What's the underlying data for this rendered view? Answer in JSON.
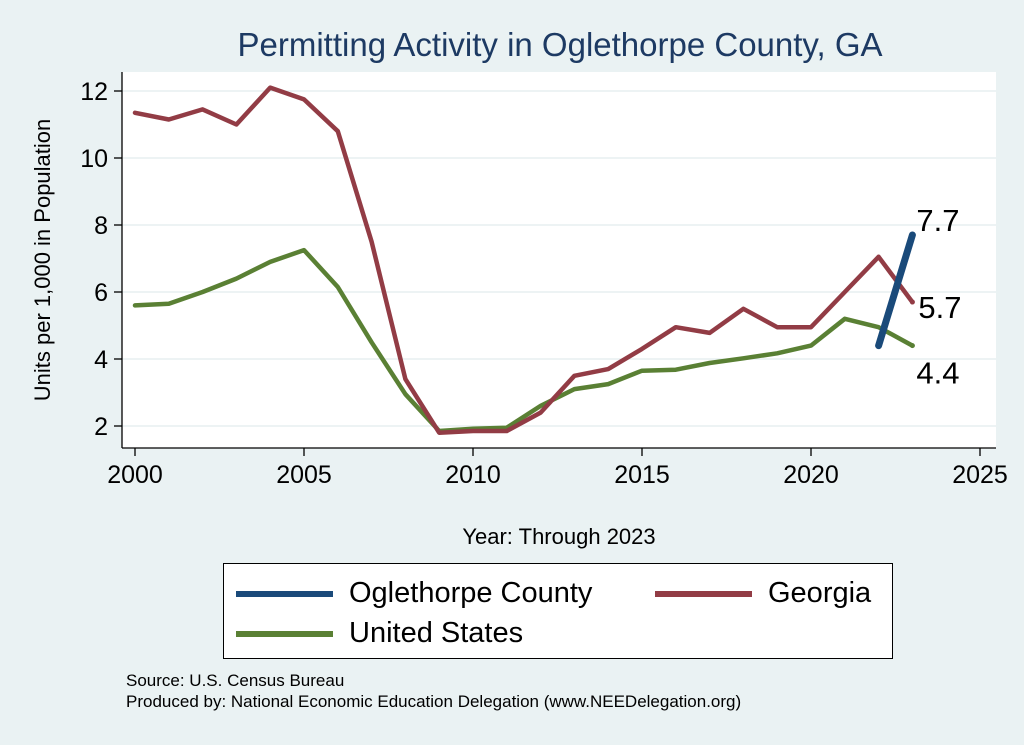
{
  "chart_data": {
    "type": "line",
    "title": "Permitting Activity in Oglethorpe County, GA",
    "xlabel": "Year: Through 2023",
    "ylabel": "Units per 1,000 in Population",
    "xlim": [
      2000,
      2025
    ],
    "ylim": [
      1.5,
      12.6
    ],
    "xticks": [
      2000,
      2005,
      2010,
      2015,
      2020,
      2025
    ],
    "yticks": [
      2,
      4,
      6,
      8,
      10,
      12
    ],
    "grid": true,
    "series": [
      {
        "name": "Oglethorpe County",
        "color": "#1a4a7a",
        "x": [
          2022,
          2023
        ],
        "values": [
          4.4,
          7.7
        ],
        "end_label": "7.7"
      },
      {
        "name": "Georgia",
        "color": "#923c45",
        "x": [
          2000,
          2001,
          2002,
          2003,
          2004,
          2005,
          2006,
          2007,
          2008,
          2009,
          2010,
          2011,
          2012,
          2013,
          2014,
          2015,
          2016,
          2017,
          2018,
          2019,
          2020,
          2021,
          2022,
          2023
        ],
        "values": [
          11.35,
          11.15,
          11.45,
          11.0,
          12.1,
          11.75,
          10.8,
          7.5,
          3.4,
          1.8,
          1.85,
          1.85,
          2.4,
          3.5,
          3.7,
          4.3,
          4.95,
          4.78,
          5.5,
          4.95,
          4.95,
          6.0,
          7.05,
          5.7
        ],
        "end_label": "5.7"
      },
      {
        "name": "United States",
        "color": "#5a8034",
        "x": [
          2000,
          2001,
          2002,
          2003,
          2004,
          2005,
          2006,
          2007,
          2008,
          2009,
          2010,
          2011,
          2012,
          2013,
          2014,
          2015,
          2016,
          2017,
          2018,
          2019,
          2020,
          2021,
          2022,
          2023
        ],
        "values": [
          5.6,
          5.65,
          6.0,
          6.4,
          6.9,
          7.25,
          6.15,
          4.5,
          2.95,
          1.85,
          1.92,
          1.95,
          2.6,
          3.1,
          3.25,
          3.65,
          3.68,
          3.88,
          4.02,
          4.17,
          4.4,
          5.2,
          4.95,
          4.4
        ],
        "end_label": "4.4"
      }
    ],
    "legend_position": "bottom"
  },
  "source": {
    "line1": "Source: U.S. Census Bureau",
    "line2": "Produced by: National Economic Education Delegation (www.NEEDelegation.org)"
  }
}
